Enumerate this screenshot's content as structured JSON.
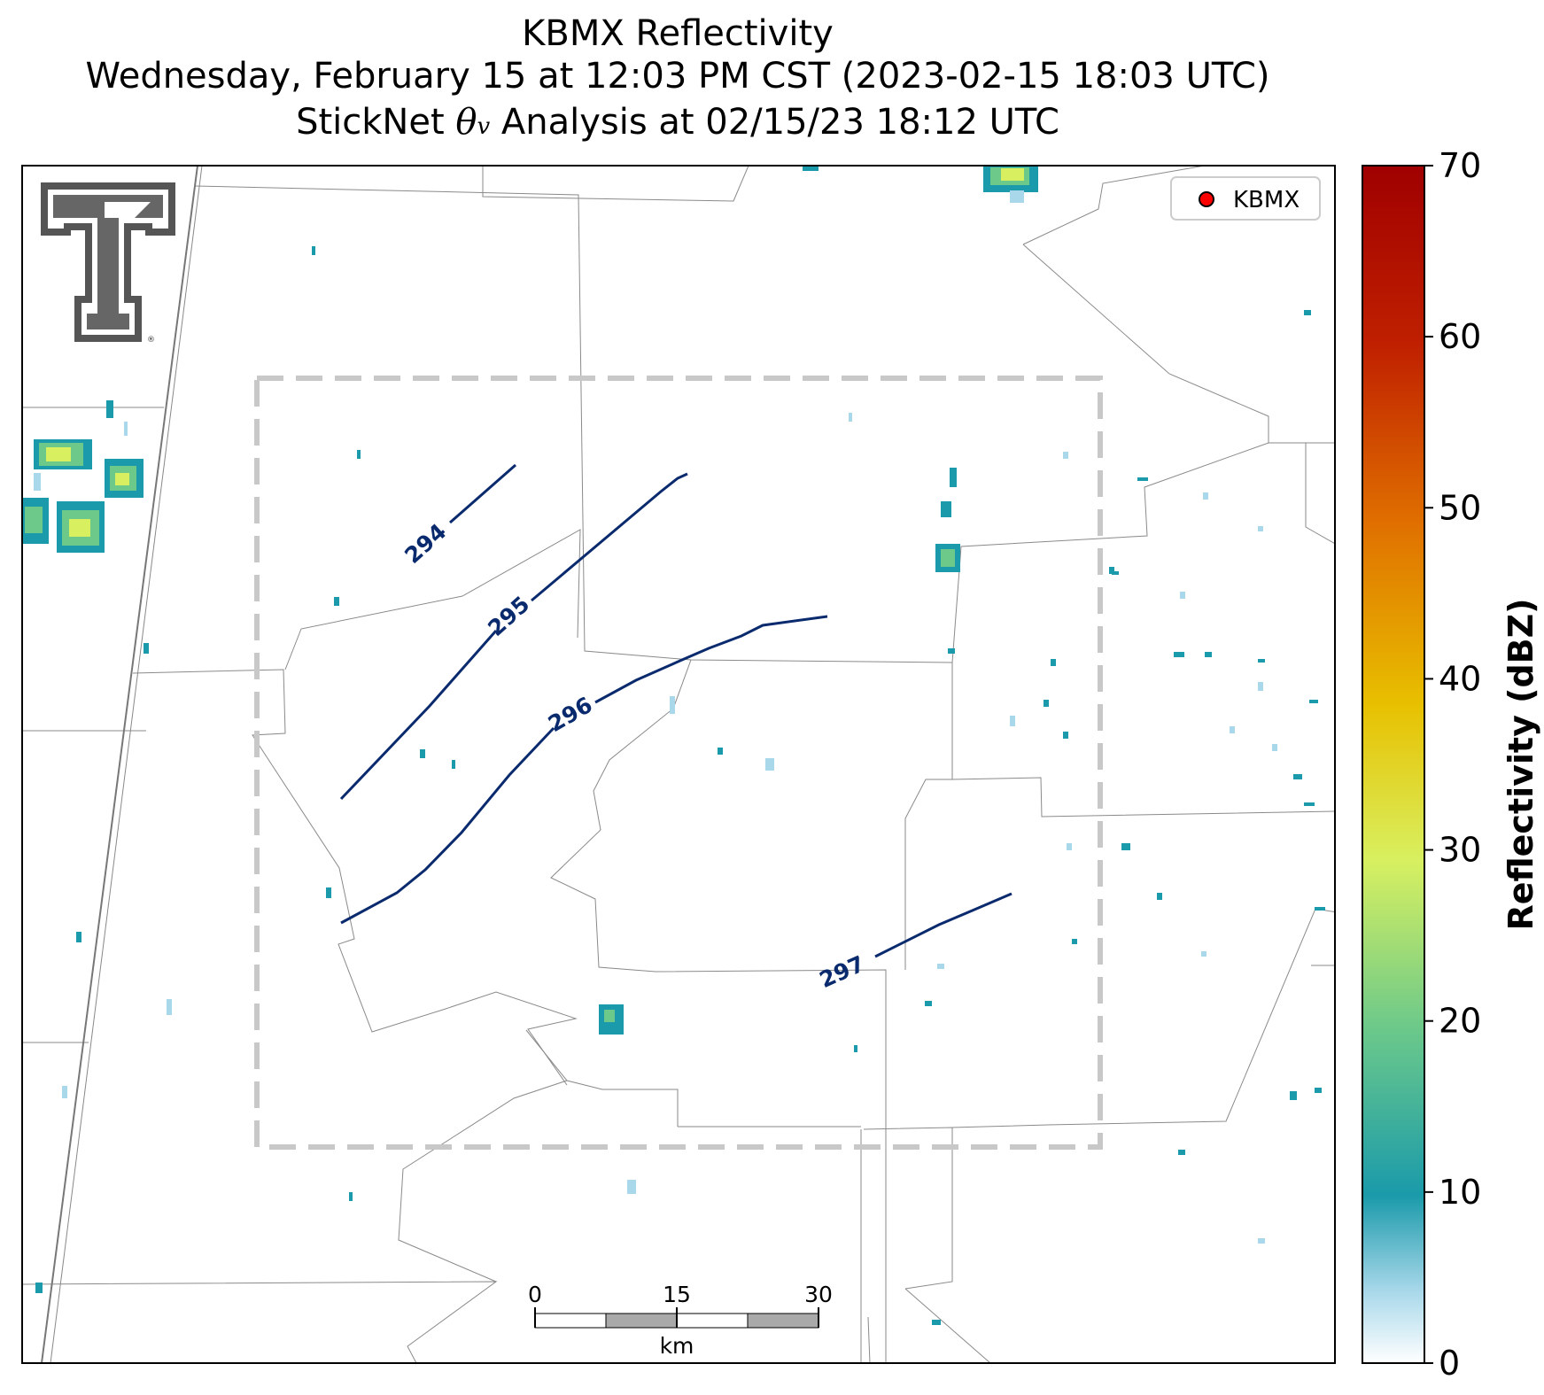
{
  "title": {
    "line1": "KBMX Reflectivity",
    "line2": "Wednesday, February 15 at 12:03 PM CST (2023-02-15 18:03 UTC)",
    "line3_prefix": "StickNet ",
    "line3_var": "θ",
    "line3_sub": "v",
    "line3_suffix": " Analysis at 02/15/23 18:12 UTC"
  },
  "legend": {
    "entries": [
      {
        "label": "KBMX",
        "marker_color": "#ff0000"
      }
    ]
  },
  "colorbar": {
    "label": "Reflectivity (dBZ)",
    "min": 0,
    "max": 70,
    "ticks": [
      "0",
      "10",
      "20",
      "30",
      "40",
      "50",
      "60",
      "70"
    ],
    "colors": [
      "#ffffff",
      "#a8d8ea",
      "#1a9aaa",
      "#6cc98a",
      "#d8f060",
      "#e8c000",
      "#e07000",
      "#c02000",
      "#a00000"
    ]
  },
  "contours": {
    "color": "#0a2a6e",
    "labels": [
      "294",
      "295",
      "296",
      "297"
    ]
  },
  "scale_bar": {
    "ticks": [
      "0",
      "15",
      "30"
    ],
    "unit": "km"
  },
  "logo": {
    "name": "Texas Tech Double T",
    "mark": "®"
  }
}
